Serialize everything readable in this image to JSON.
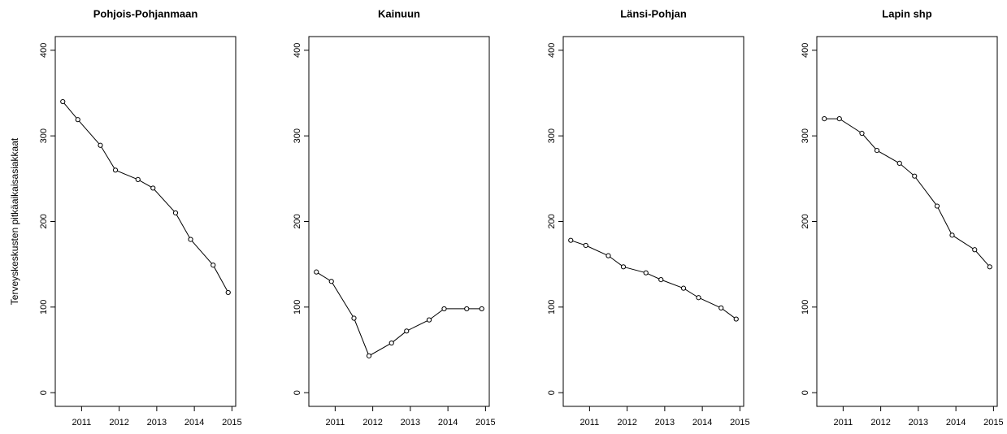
{
  "chart_data": [
    {
      "type": "line",
      "title": "Pohjois-Pohjanmaan",
      "ylabel": "Terveyskeskusten pitkäaikaisasiakkaat",
      "x": [
        2010.5,
        2010.9,
        2011.5,
        2011.9,
        2012.5,
        2012.9,
        2013.5,
        2013.9,
        2014.5,
        2014.9
      ],
      "values": [
        340,
        319,
        289,
        260,
        249,
        239,
        210,
        179,
        149,
        117
      ],
      "color": "#000000",
      "xlim": [
        2010.3,
        2015.1
      ],
      "xticks": [
        2011,
        2012,
        2013,
        2014,
        2015
      ],
      "ylim": [
        -16,
        416
      ],
      "yticks": [
        0,
        100,
        200,
        300,
        400
      ]
    },
    {
      "type": "line",
      "title": "Kainuun",
      "x": [
        2010.5,
        2010.9,
        2011.5,
        2011.9,
        2012.5,
        2012.9,
        2013.5,
        2013.9,
        2014.5,
        2014.9
      ],
      "values": [
        141,
        130,
        87,
        43,
        58,
        72,
        85,
        98,
        98,
        98
      ],
      "color": "#000000",
      "xlim": [
        2010.3,
        2015.1
      ],
      "xticks": [
        2011,
        2012,
        2013,
        2014,
        2015
      ],
      "ylim": [
        -16,
        416
      ],
      "yticks": [
        0,
        100,
        200,
        300,
        400
      ]
    },
    {
      "type": "line",
      "title": "Länsi-Pohjan",
      "x": [
        2010.5,
        2010.9,
        2011.5,
        2011.9,
        2012.5,
        2012.9,
        2013.5,
        2013.9,
        2014.5,
        2014.9
      ],
      "values": [
        178,
        172,
        160,
        147,
        140,
        132,
        122,
        111,
        99,
        86
      ],
      "color": "#000000",
      "xlim": [
        2010.3,
        2015.1
      ],
      "xticks": [
        2011,
        2012,
        2013,
        2014,
        2015
      ],
      "ylim": [
        -16,
        416
      ],
      "yticks": [
        0,
        100,
        200,
        300,
        400
      ]
    },
    {
      "type": "line",
      "title": "Lapin shp",
      "x": [
        2010.5,
        2010.9,
        2011.5,
        2011.9,
        2012.5,
        2012.9,
        2013.5,
        2013.9,
        2014.5,
        2014.9
      ],
      "values": [
        320,
        320,
        303,
        283,
        268,
        253,
        218,
        184,
        167,
        147
      ],
      "color": "#000000",
      "xlim": [
        2010.3,
        2015.1
      ],
      "xticks": [
        2011,
        2012,
        2013,
        2014,
        2015
      ],
      "ylim": [
        -16,
        416
      ],
      "yticks": [
        0,
        100,
        200,
        300,
        400
      ]
    }
  ]
}
